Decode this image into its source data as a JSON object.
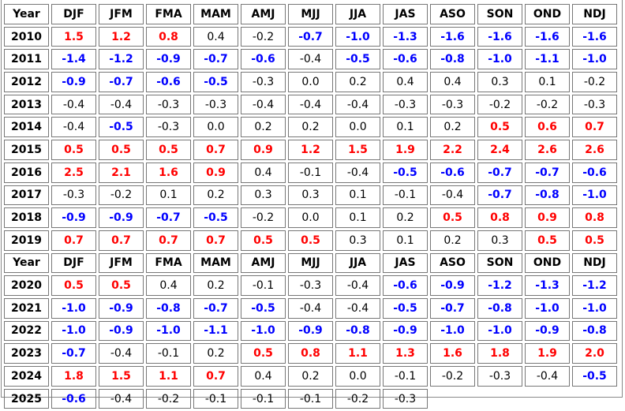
{
  "colors": {
    "warm": "#ff0000",
    "cool": "#0000ff",
    "neutral": "#000000"
  },
  "header": [
    "Year",
    "DJF",
    "JFM",
    "FMA",
    "MAM",
    "AMJ",
    "MJJ",
    "JJA",
    "JAS",
    "ASO",
    "SON",
    "OND",
    "NDJ"
  ],
  "blocks": [
    {
      "rows": [
        {
          "year": "2010",
          "values": [
            "1.5",
            "1.2",
            "0.8",
            "0.4",
            "-0.2",
            "-0.7",
            "-1.0",
            "-1.3",
            "-1.6",
            "-1.6",
            "-1.6",
            "-1.6"
          ]
        },
        {
          "year": "2011",
          "values": [
            "-1.4",
            "-1.2",
            "-0.9",
            "-0.7",
            "-0.6",
            "-0.4",
            "-0.5",
            "-0.6",
            "-0.8",
            "-1.0",
            "-1.1",
            "-1.0"
          ]
        },
        {
          "year": "2012",
          "values": [
            "-0.9",
            "-0.7",
            "-0.6",
            "-0.5",
            "-0.3",
            "0.0",
            "0.2",
            "0.4",
            "0.4",
            "0.3",
            "0.1",
            "-0.2"
          ]
        },
        {
          "year": "2013",
          "values": [
            "-0.4",
            "-0.4",
            "-0.3",
            "-0.3",
            "-0.4",
            "-0.4",
            "-0.4",
            "-0.3",
            "-0.3",
            "-0.2",
            "-0.2",
            "-0.3"
          ]
        },
        {
          "year": "2014",
          "values": [
            "-0.4",
            "-0.5",
            "-0.3",
            "0.0",
            "0.2",
            "0.2",
            "0.0",
            "0.1",
            "0.2",
            "0.5",
            "0.6",
            "0.7"
          ]
        },
        {
          "year": "2015",
          "values": [
            "0.5",
            "0.5",
            "0.5",
            "0.7",
            "0.9",
            "1.2",
            "1.5",
            "1.9",
            "2.2",
            "2.4",
            "2.6",
            "2.6"
          ]
        },
        {
          "year": "2016",
          "values": [
            "2.5",
            "2.1",
            "1.6",
            "0.9",
            "0.4",
            "-0.1",
            "-0.4",
            "-0.5",
            "-0.6",
            "-0.7",
            "-0.7",
            "-0.6"
          ]
        },
        {
          "year": "2017",
          "values": [
            "-0.3",
            "-0.2",
            "0.1",
            "0.2",
            "0.3",
            "0.3",
            "0.1",
            "-0.1",
            "-0.4",
            "-0.7",
            "-0.8",
            "-1.0"
          ]
        },
        {
          "year": "2018",
          "values": [
            "-0.9",
            "-0.9",
            "-0.7",
            "-0.5",
            "-0.2",
            "0.0",
            "0.1",
            "0.2",
            "0.5",
            "0.8",
            "0.9",
            "0.8"
          ]
        },
        {
          "year": "2019",
          "values": [
            "0.7",
            "0.7",
            "0.7",
            "0.7",
            "0.5",
            "0.5",
            "0.3",
            "0.1",
            "0.2",
            "0.3",
            "0.5",
            "0.5"
          ]
        }
      ]
    },
    {
      "rows": [
        {
          "year": "2020",
          "values": [
            "0.5",
            "0.5",
            "0.4",
            "0.2",
            "-0.1",
            "-0.3",
            "-0.4",
            "-0.6",
            "-0.9",
            "-1.2",
            "-1.3",
            "-1.2"
          ]
        },
        {
          "year": "2021",
          "values": [
            "-1.0",
            "-0.9",
            "-0.8",
            "-0.7",
            "-0.5",
            "-0.4",
            "-0.4",
            "-0.5",
            "-0.7",
            "-0.8",
            "-1.0",
            "-1.0"
          ]
        },
        {
          "year": "2022",
          "values": [
            "-1.0",
            "-0.9",
            "-1.0",
            "-1.1",
            "-1.0",
            "-0.9",
            "-0.8",
            "-0.9",
            "-1.0",
            "-1.0",
            "-0.9",
            "-0.8"
          ]
        },
        {
          "year": "2023",
          "values": [
            "-0.7",
            "-0.4",
            "-0.1",
            "0.2",
            "0.5",
            "0.8",
            "1.1",
            "1.3",
            "1.6",
            "1.8",
            "1.9",
            "2.0"
          ]
        },
        {
          "year": "2024",
          "values": [
            "1.8",
            "1.5",
            "1.1",
            "0.7",
            "0.4",
            "0.2",
            "0.0",
            "-0.1",
            "-0.2",
            "-0.3",
            "-0.4",
            "-0.5"
          ]
        },
        {
          "year": "2025",
          "values": [
            "-0.6",
            "-0.4",
            "-0.2",
            "-0.1",
            "-0.1",
            "-0.1",
            "-0.2",
            "-0.3"
          ]
        }
      ]
    }
  ]
}
